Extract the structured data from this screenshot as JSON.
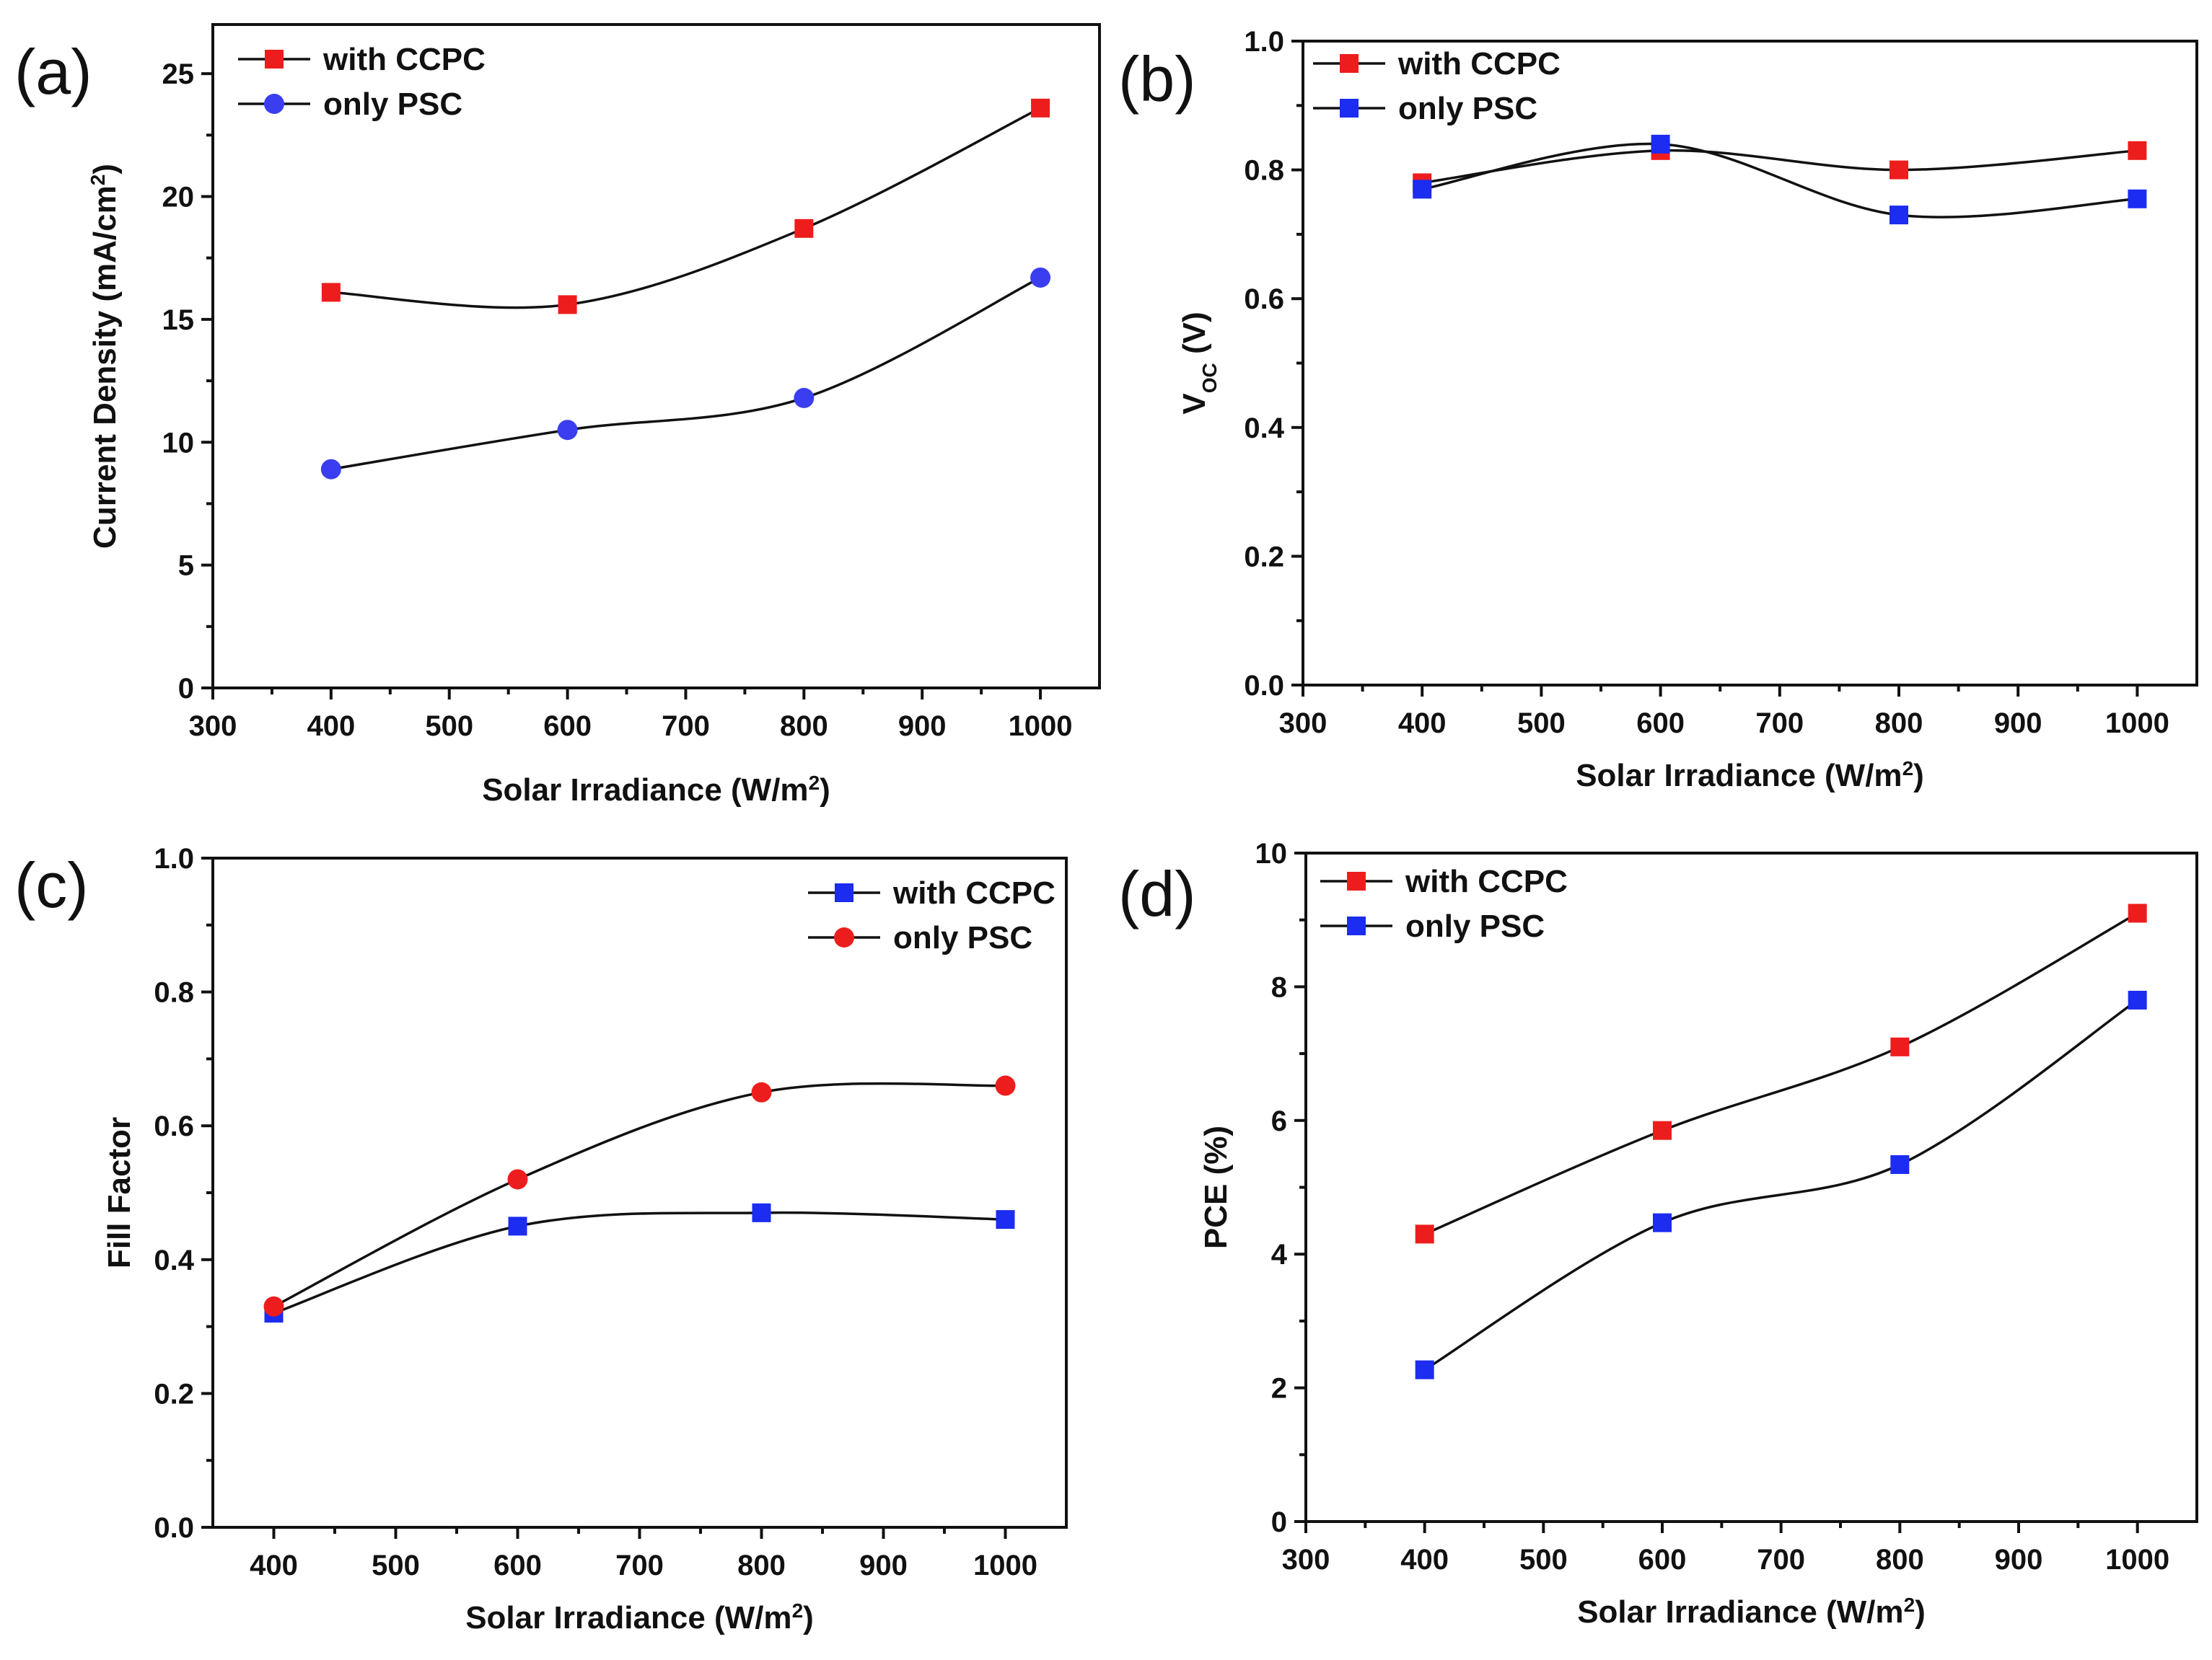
{
  "colors": {
    "red": "#ee1d1d",
    "blue": "#1c2cf0",
    "blue_circle": "#3a3ef0",
    "axis": "#111111"
  },
  "chart_data": [
    {
      "id": "a",
      "type": "scatter",
      "panel_label": "(a)",
      "xlabel": "Solar Irradiance (W/m",
      "xlabel_sup": "2",
      "xlabel_after": ")",
      "ylabel": "Current Density (mA/cm",
      "ylabel_sup": "2",
      "ylabel_after": ")",
      "xlim": [
        300,
        1050
      ],
      "ylim": [
        0,
        27
      ],
      "xticks": [
        300,
        400,
        500,
        600,
        700,
        800,
        900,
        1000
      ],
      "yticks": [
        0,
        5,
        10,
        15,
        20,
        25
      ],
      "ytick_labels": [
        "0",
        "5",
        "10",
        "15",
        "20",
        "25"
      ],
      "legend_position": "top-left",
      "series": [
        {
          "name": "with CCPC",
          "marker": "square",
          "color": "#ee1d1d",
          "x": [
            400,
            600,
            800,
            1000
          ],
          "y": [
            16.1,
            15.6,
            18.7,
            23.6
          ]
        },
        {
          "name": "only PSC",
          "marker": "circle",
          "color": "#3a3ef0",
          "x": [
            400,
            600,
            800,
            1000
          ],
          "y": [
            8.9,
            10.5,
            11.8,
            16.7
          ]
        }
      ]
    },
    {
      "id": "b",
      "type": "scatter",
      "panel_label": "(b)",
      "xlabel": "Solar Irradiance (W/m",
      "xlabel_sup": "2",
      "xlabel_after": ")",
      "ylabel": "V",
      "ylabel_sub": "OC",
      "ylabel_after": " (V)",
      "xlim": [
        300,
        1050
      ],
      "ylim": [
        0,
        1.0
      ],
      "xticks": [
        300,
        400,
        500,
        600,
        700,
        800,
        900,
        1000
      ],
      "yticks": [
        0,
        0.2,
        0.4,
        0.6,
        0.8,
        1.0
      ],
      "ytick_labels": [
        "0.0",
        "0.2",
        "0.4",
        "0.6",
        "0.8",
        "1.0"
      ],
      "legend_position": "top-left",
      "series": [
        {
          "name": "with CCPC",
          "marker": "square",
          "color": "#ee1d1d",
          "x": [
            400,
            600,
            800,
            1000
          ],
          "y": [
            0.78,
            0.83,
            0.8,
            0.83
          ]
        },
        {
          "name": "only PSC",
          "marker": "square",
          "color": "#1c2cf0",
          "x": [
            400,
            600,
            800,
            1000
          ],
          "y": [
            0.77,
            0.84,
            0.73,
            0.755
          ]
        }
      ]
    },
    {
      "id": "c",
      "type": "scatter",
      "panel_label": "(c)",
      "xlabel": "Solar Irradiance (W/m",
      "xlabel_sup": "2",
      "xlabel_after": ")",
      "ylabel": "Fill Factor",
      "xlim": [
        350,
        1050
      ],
      "ylim": [
        0,
        1.0
      ],
      "xticks": [
        400,
        500,
        600,
        700,
        800,
        900,
        1000
      ],
      "yticks": [
        0,
        0.2,
        0.4,
        0.6,
        0.8,
        1.0
      ],
      "ytick_labels": [
        "0.0",
        "0.2",
        "0.4",
        "0.6",
        "0.8",
        "1.0"
      ],
      "legend_position": "top-right",
      "series": [
        {
          "name": "with CCPC",
          "marker": "square",
          "color": "#1c2cf0",
          "x": [
            400,
            600,
            800,
            1000
          ],
          "y": [
            0.32,
            0.45,
            0.47,
            0.46
          ]
        },
        {
          "name": "only PSC",
          "marker": "circle",
          "color": "#ee1d1d",
          "x": [
            400,
            600,
            800,
            1000
          ],
          "y": [
            0.33,
            0.52,
            0.65,
            0.66
          ]
        }
      ]
    },
    {
      "id": "d",
      "type": "scatter",
      "panel_label": "(d)",
      "xlabel": "Solar Irradiance (W/m",
      "xlabel_sup": "2",
      "xlabel_after": ")",
      "ylabel": "PCE (%)",
      "xlim": [
        300,
        1050
      ],
      "ylim": [
        0,
        10
      ],
      "xticks": [
        300,
        400,
        500,
        600,
        700,
        800,
        900,
        1000
      ],
      "yticks": [
        0,
        2,
        4,
        6,
        8,
        10
      ],
      "ytick_labels": [
        "0",
        "2",
        "4",
        "6",
        "8",
        "10"
      ],
      "legend_position": "top-left",
      "series": [
        {
          "name": "with CCPC",
          "marker": "square",
          "color": "#ee1d1d",
          "x": [
            400,
            600,
            800,
            1000
          ],
          "y": [
            4.3,
            5.85,
            7.1,
            9.1
          ]
        },
        {
          "name": "only PSC",
          "marker": "square",
          "color": "#1c2cf0",
          "x": [
            400,
            600,
            800,
            1000
          ],
          "y": [
            2.27,
            4.47,
            5.34,
            7.8
          ]
        }
      ]
    }
  ]
}
